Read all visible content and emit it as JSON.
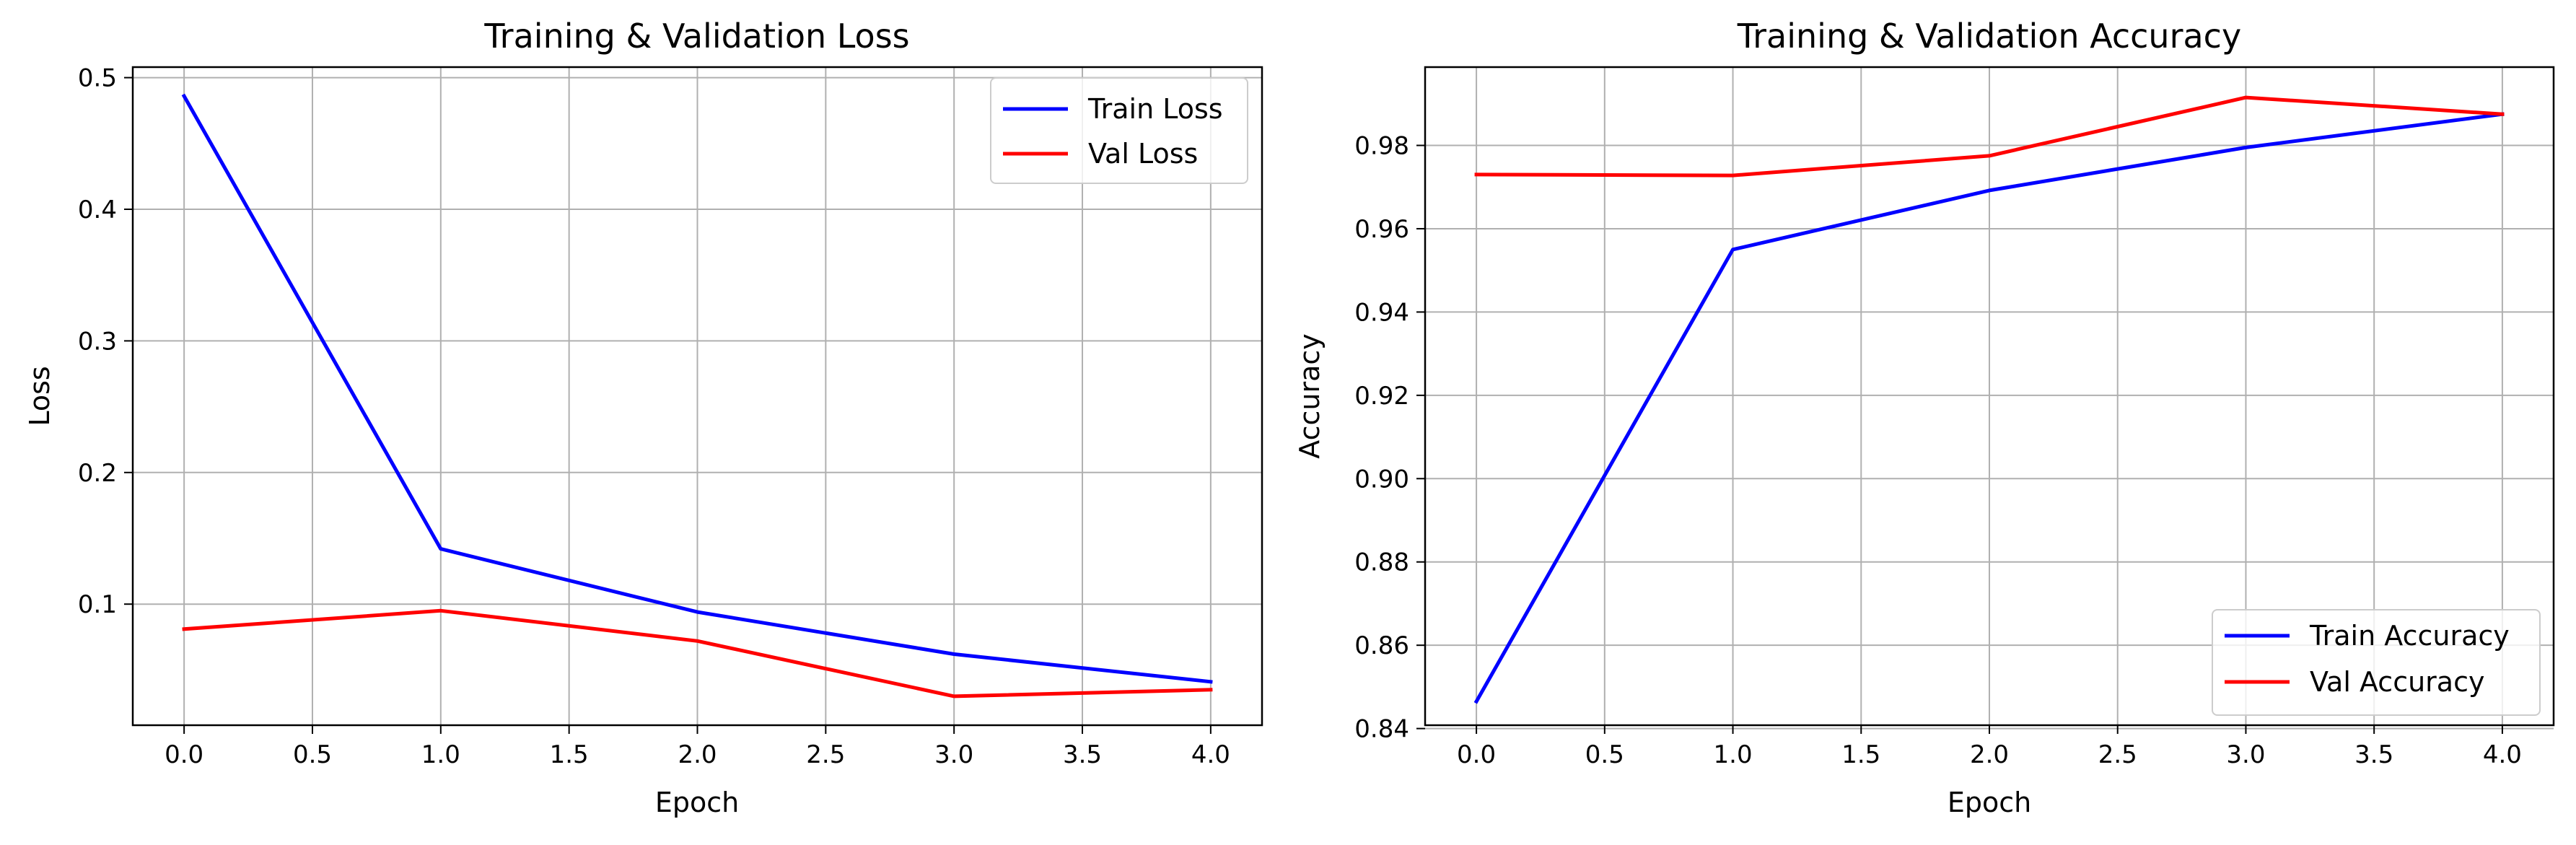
{
  "chart_data": [
    {
      "type": "line",
      "title": "Training & Validation Loss",
      "xlabel": "Epoch",
      "ylabel": "Loss",
      "x": [
        0,
        1,
        2,
        3,
        4
      ],
      "series": [
        {
          "name": "Train Loss",
          "color": "#0000ff",
          "values": [
            0.486,
            0.142,
            0.094,
            0.062,
            0.041
          ]
        },
        {
          "name": "Val Loss",
          "color": "#ff0000",
          "values": [
            0.081,
            0.095,
            0.072,
            0.03,
            0.035
          ]
        }
      ],
      "xlim": [
        -0.2,
        4.2
      ],
      "ylim": [
        0.008,
        0.508
      ],
      "xticks": [
        0.0,
        0.5,
        1.0,
        1.5,
        2.0,
        2.5,
        3.0,
        3.5,
        4.0
      ],
      "xtick_labels": [
        "0.0",
        "0.5",
        "1.0",
        "1.5",
        "2.0",
        "2.5",
        "3.0",
        "3.5",
        "4.0"
      ],
      "yticks": [
        0.1,
        0.2,
        0.3,
        0.4,
        0.5
      ],
      "ytick_labels": [
        "0.1",
        "0.2",
        "0.3",
        "0.4",
        "0.5"
      ],
      "grid": true,
      "legend_position": "top-right"
    },
    {
      "type": "line",
      "title": "Training & Validation Accuracy",
      "xlabel": "Epoch",
      "ylabel": "Accuracy",
      "x": [
        0,
        1,
        2,
        3,
        4
      ],
      "series": [
        {
          "name": "Train Accuracy",
          "color": "#0000ff",
          "values": [
            0.8465,
            0.955,
            0.9692,
            0.9795,
            0.9875
          ]
        },
        {
          "name": "Val Accuracy",
          "color": "#ff0000",
          "values": [
            0.973,
            0.9728,
            0.9775,
            0.9915,
            0.9875
          ]
        }
      ],
      "xlim": [
        -0.2,
        4.2
      ],
      "ylim": [
        0.8408,
        0.9988
      ],
      "xticks": [
        0.0,
        0.5,
        1.0,
        1.5,
        2.0,
        2.5,
        3.0,
        3.5,
        4.0
      ],
      "xtick_labels": [
        "0.0",
        "0.5",
        "1.0",
        "1.5",
        "2.0",
        "2.5",
        "3.0",
        "3.5",
        "4.0"
      ],
      "yticks": [
        0.84,
        0.86,
        0.88,
        0.9,
        0.92,
        0.94,
        0.96,
        0.98
      ],
      "ytick_labels": [
        "0.84",
        "0.86",
        "0.88",
        "0.90",
        "0.92",
        "0.94",
        "0.96",
        "0.98"
      ],
      "grid": true,
      "legend_position": "bottom-right"
    }
  ]
}
